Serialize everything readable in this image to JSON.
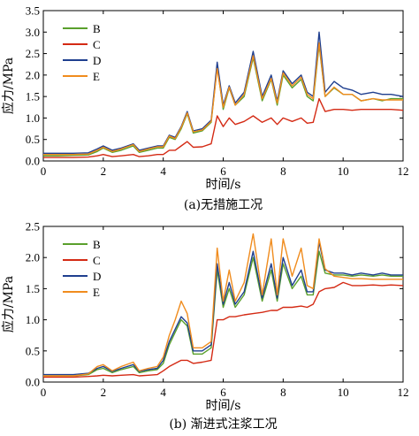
{
  "chart_data": [
    {
      "type": "line",
      "caption": "(a)无措施工况",
      "xlabel": "时间/s",
      "ylabel": "应力/MPa",
      "xlim": [
        0,
        12
      ],
      "ylim": [
        0,
        3.5
      ],
      "xticks": [
        "0",
        "2",
        "4",
        "6",
        "8",
        "10",
        "12"
      ],
      "yticks": [
        "0.0",
        "0.5",
        "1.0",
        "1.5",
        "2.0",
        "2.5",
        "3.0",
        "3.5"
      ],
      "legend_position": "top-left",
      "x": [
        0,
        0.5,
        1.0,
        1.5,
        1.8,
        2.0,
        2.3,
        2.6,
        3.0,
        3.2,
        3.5,
        3.8,
        4.0,
        4.2,
        4.4,
        4.6,
        4.8,
        5.0,
        5.3,
        5.6,
        5.8,
        6.0,
        6.2,
        6.4,
        6.7,
        7.0,
        7.3,
        7.6,
        7.8,
        8.0,
        8.3,
        8.6,
        8.8,
        9.0,
        9.2,
        9.4,
        9.7,
        10.0,
        10.3,
        10.6,
        11.0,
        11.3,
        11.6,
        12.0
      ],
      "series": [
        {
          "name": "B",
          "color": "#5aa02c",
          "values": [
            0.12,
            0.12,
            0.13,
            0.14,
            0.22,
            0.3,
            0.2,
            0.25,
            0.35,
            0.2,
            0.25,
            0.3,
            0.3,
            0.55,
            0.5,
            0.75,
            1.1,
            0.65,
            0.7,
            0.9,
            2.2,
            1.2,
            1.7,
            1.3,
            1.5,
            2.4,
            1.4,
            1.9,
            1.3,
            2.0,
            1.7,
            1.9,
            1.5,
            1.4,
            2.7,
            1.5,
            1.7,
            1.55,
            1.55,
            1.4,
            1.45,
            1.4,
            1.45,
            1.45
          ]
        },
        {
          "name": "C",
          "color": "#d42a14",
          "values": [
            0.08,
            0.08,
            0.08,
            0.09,
            0.12,
            0.15,
            0.1,
            0.12,
            0.15,
            0.1,
            0.12,
            0.15,
            0.15,
            0.25,
            0.25,
            0.35,
            0.45,
            0.32,
            0.33,
            0.4,
            1.05,
            0.8,
            1.0,
            0.85,
            0.92,
            1.05,
            0.9,
            1.0,
            0.85,
            1.0,
            0.92,
            1.0,
            0.88,
            0.9,
            1.45,
            1.15,
            1.2,
            1.2,
            1.18,
            1.2,
            1.2,
            1.2,
            1.2,
            1.18
          ]
        },
        {
          "name": "D",
          "color": "#1f3f8f",
          "values": [
            0.18,
            0.18,
            0.18,
            0.19,
            0.28,
            0.35,
            0.25,
            0.3,
            0.4,
            0.25,
            0.3,
            0.35,
            0.35,
            0.6,
            0.55,
            0.8,
            1.15,
            0.7,
            0.75,
            0.95,
            2.3,
            1.3,
            1.75,
            1.35,
            1.6,
            2.55,
            1.5,
            2.0,
            1.4,
            2.1,
            1.8,
            2.0,
            1.6,
            1.5,
            3.0,
            1.6,
            1.85,
            1.7,
            1.65,
            1.55,
            1.6,
            1.55,
            1.55,
            1.5
          ]
        },
        {
          "name": "E",
          "color": "#f08c1e",
          "values": [
            0.15,
            0.15,
            0.15,
            0.16,
            0.25,
            0.32,
            0.22,
            0.28,
            0.38,
            0.22,
            0.28,
            0.33,
            0.33,
            0.58,
            0.52,
            0.78,
            1.12,
            0.68,
            0.72,
            0.92,
            2.15,
            1.25,
            1.72,
            1.3,
            1.55,
            2.45,
            1.45,
            1.92,
            1.35,
            2.05,
            1.75,
            1.95,
            1.55,
            1.45,
            2.75,
            1.5,
            1.72,
            1.55,
            1.55,
            1.4,
            1.45,
            1.42,
            1.42,
            1.42
          ]
        }
      ]
    },
    {
      "type": "line",
      "caption": "(b) 渐进式注浆工况",
      "xlabel": "时间/s",
      "ylabel": "应力/MPa",
      "xlim": [
        0,
        12
      ],
      "ylim": [
        0,
        2.5
      ],
      "xticks": [
        "0",
        "2",
        "4",
        "6",
        "8",
        "10",
        "12"
      ],
      "yticks": [
        "0.0",
        "0.5",
        "1.0",
        "1.5",
        "2.0",
        "2.5"
      ],
      "legend_position": "top-left",
      "x": [
        0,
        0.5,
        1.0,
        1.5,
        1.8,
        2.0,
        2.3,
        2.6,
        3.0,
        3.2,
        3.5,
        3.8,
        4.0,
        4.2,
        4.4,
        4.6,
        4.8,
        5.0,
        5.3,
        5.6,
        5.8,
        6.0,
        6.2,
        6.4,
        6.7,
        7.0,
        7.3,
        7.6,
        7.8,
        8.0,
        8.3,
        8.6,
        8.8,
        9.0,
        9.2,
        9.4,
        9.7,
        10.0,
        10.3,
        10.6,
        11.0,
        11.3,
        11.6,
        12.0
      ],
      "series": [
        {
          "name": "B",
          "color": "#5aa02c",
          "values": [
            0.1,
            0.1,
            0.1,
            0.12,
            0.2,
            0.22,
            0.15,
            0.2,
            0.25,
            0.15,
            0.18,
            0.2,
            0.3,
            0.6,
            0.8,
            1.0,
            0.9,
            0.45,
            0.45,
            0.55,
            1.8,
            1.2,
            1.5,
            1.2,
            1.4,
            2.0,
            1.3,
            1.8,
            1.3,
            1.9,
            1.5,
            1.7,
            1.4,
            1.4,
            2.1,
            1.75,
            1.72,
            1.72,
            1.7,
            1.72,
            1.7,
            1.72,
            1.7,
            1.7
          ]
        },
        {
          "name": "C",
          "color": "#d42a14",
          "values": [
            0.08,
            0.08,
            0.08,
            0.09,
            0.1,
            0.11,
            0.1,
            0.11,
            0.12,
            0.1,
            0.11,
            0.12,
            0.18,
            0.25,
            0.3,
            0.35,
            0.35,
            0.3,
            0.32,
            0.35,
            1.0,
            1.0,
            1.05,
            1.05,
            1.08,
            1.1,
            1.12,
            1.15,
            1.15,
            1.2,
            1.2,
            1.22,
            1.2,
            1.25,
            1.45,
            1.5,
            1.52,
            1.6,
            1.55,
            1.55,
            1.56,
            1.55,
            1.56,
            1.55
          ]
        },
        {
          "name": "D",
          "color": "#1f3f8f",
          "values": [
            0.12,
            0.12,
            0.12,
            0.14,
            0.22,
            0.25,
            0.17,
            0.22,
            0.28,
            0.17,
            0.2,
            0.22,
            0.35,
            0.65,
            0.85,
            1.05,
            0.95,
            0.5,
            0.5,
            0.6,
            1.9,
            1.25,
            1.6,
            1.25,
            1.45,
            2.1,
            1.35,
            1.9,
            1.35,
            2.0,
            1.55,
            1.8,
            1.45,
            1.45,
            2.25,
            1.8,
            1.75,
            1.75,
            1.72,
            1.75,
            1.72,
            1.75,
            1.72,
            1.72
          ]
        },
        {
          "name": "E",
          "color": "#f08c1e",
          "values": [
            0.1,
            0.1,
            0.1,
            0.13,
            0.25,
            0.28,
            0.18,
            0.25,
            0.32,
            0.18,
            0.22,
            0.25,
            0.4,
            0.75,
            1.0,
            1.3,
            1.1,
            0.55,
            0.55,
            0.65,
            2.15,
            1.3,
            1.8,
            1.3,
            1.6,
            2.38,
            1.4,
            2.3,
            1.4,
            2.3,
            1.7,
            2.15,
            1.55,
            1.5,
            2.3,
            1.82,
            1.7,
            1.68,
            1.66,
            1.66,
            1.65,
            1.65,
            1.65,
            1.65
          ]
        }
      ]
    }
  ]
}
